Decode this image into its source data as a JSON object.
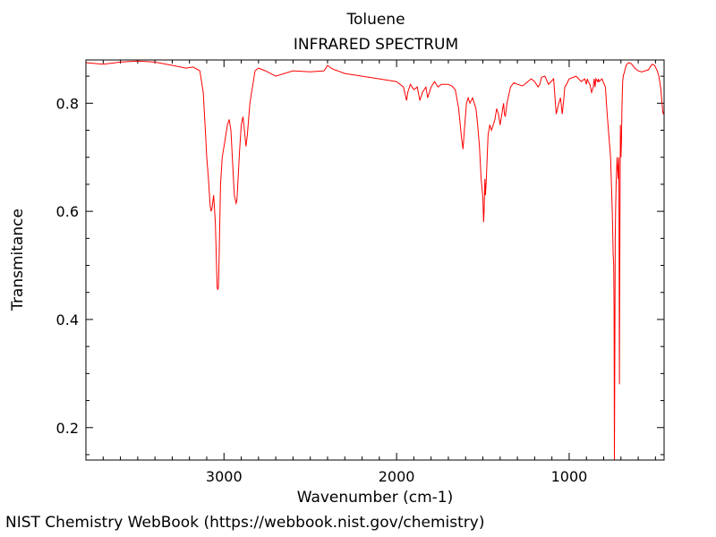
{
  "footer": "NIST Chemistry WebBook (https://webbook.nist.gov/chemistry)",
  "chart_data": {
    "type": "line",
    "title": "Toluene",
    "subtitle": "INFRARED SPECTRUM",
    "xlabel": "Wavenumber (cm-1)",
    "ylabel": "Transmitance",
    "xlim": [
      3800,
      450
    ],
    "ylim": [
      0.14,
      0.88
    ],
    "x_reversed": true,
    "xticks": [
      3000,
      2000,
      1000
    ],
    "xtick_labels": [
      "3000",
      "2000",
      "1000"
    ],
    "yticks": [
      0.2,
      0.4,
      0.6,
      0.8
    ],
    "ytick_labels": [
      "0.2",
      "0.4",
      "0.6",
      "0.8"
    ],
    "grid": false,
    "series": [
      {
        "color": "#ff0000",
        "x": [
          3800,
          3700,
          3600,
          3500,
          3400,
          3300,
          3220,
          3180,
          3140,
          3120,
          3110,
          3100,
          3090,
          3080,
          3075,
          3070,
          3060,
          3050,
          3045,
          3040,
          3036,
          3032,
          3028,
          3020,
          3010,
          3000,
          2990,
          2980,
          2970,
          2960,
          2950,
          2940,
          2930,
          2925,
          2920,
          2910,
          2900,
          2890,
          2880,
          2873,
          2865,
          2850,
          2820,
          2800,
          2760,
          2700,
          2600,
          2500,
          2420,
          2400,
          2380,
          2360,
          2300,
          2200,
          2100,
          2000,
          1960,
          1942,
          1935,
          1920,
          1900,
          1880,
          1865,
          1850,
          1830,
          1820,
          1800,
          1780,
          1760,
          1740,
          1700,
          1680,
          1660,
          1640,
          1625,
          1615,
          1605,
          1595,
          1585,
          1575,
          1560,
          1540,
          1530,
          1520,
          1510,
          1500,
          1496,
          1493,
          1490,
          1488,
          1485,
          1480,
          1470,
          1460,
          1450,
          1440,
          1430,
          1420,
          1410,
          1400,
          1390,
          1380,
          1375,
          1370,
          1360,
          1340,
          1320,
          1300,
          1270,
          1240,
          1220,
          1200,
          1180,
          1170,
          1160,
          1140,
          1120,
          1090,
          1082,
          1075,
          1060,
          1050,
          1040,
          1032,
          1025,
          1015,
          1000,
          960,
          930,
          910,
          900,
          895,
          890,
          880,
          870,
          860,
          855,
          850,
          845,
          835,
          830,
          828,
          810,
          790,
          780,
          760,
          750,
          745,
          742,
          740,
          738,
          735,
          733,
          731,
          728,
          722,
          716,
          712,
          709,
          706,
          703,
          700,
          697,
          694,
          690,
          686,
          682,
          678,
          674,
          670,
          665,
          655,
          640,
          620,
          600,
          580,
          560,
          540,
          520,
          505,
          490,
          480,
          470,
          462,
          458,
          455,
          450
        ],
        "y": [
          0.875,
          0.872,
          0.876,
          0.878,
          0.876,
          0.87,
          0.865,
          0.867,
          0.86,
          0.82,
          0.76,
          0.7,
          0.66,
          0.61,
          0.6,
          0.605,
          0.63,
          0.58,
          0.52,
          0.46,
          0.455,
          0.46,
          0.52,
          0.65,
          0.7,
          0.72,
          0.74,
          0.76,
          0.77,
          0.75,
          0.69,
          0.63,
          0.615,
          0.62,
          0.65,
          0.71,
          0.76,
          0.775,
          0.745,
          0.72,
          0.74,
          0.8,
          0.86,
          0.865,
          0.86,
          0.85,
          0.86,
          0.858,
          0.86,
          0.87,
          0.865,
          0.862,
          0.855,
          0.85,
          0.845,
          0.84,
          0.83,
          0.805,
          0.82,
          0.835,
          0.825,
          0.83,
          0.805,
          0.82,
          0.83,
          0.81,
          0.83,
          0.84,
          0.83,
          0.835,
          0.835,
          0.832,
          0.825,
          0.79,
          0.74,
          0.715,
          0.76,
          0.8,
          0.81,
          0.8,
          0.81,
          0.79,
          0.76,
          0.72,
          0.66,
          0.625,
          0.58,
          0.6,
          0.64,
          0.66,
          0.63,
          0.66,
          0.74,
          0.76,
          0.75,
          0.76,
          0.77,
          0.79,
          0.78,
          0.76,
          0.78,
          0.8,
          0.78,
          0.775,
          0.8,
          0.83,
          0.838,
          0.835,
          0.832,
          0.84,
          0.845,
          0.84,
          0.83,
          0.835,
          0.848,
          0.85,
          0.835,
          0.845,
          0.81,
          0.78,
          0.8,
          0.81,
          0.78,
          0.805,
          0.83,
          0.835,
          0.845,
          0.85,
          0.84,
          0.845,
          0.835,
          0.845,
          0.84,
          0.835,
          0.82,
          0.83,
          0.845,
          0.83,
          0.845,
          0.84,
          0.845,
          0.84,
          0.845,
          0.83,
          0.78,
          0.7,
          0.6,
          0.52,
          0.5,
          0.42,
          0.14,
          0.35,
          0.55,
          0.6,
          0.65,
          0.7,
          0.66,
          0.7,
          0.28,
          0.55,
          0.76,
          0.7,
          0.73,
          0.79,
          0.84,
          0.852,
          0.855,
          0.86,
          0.865,
          0.87,
          0.872,
          0.875,
          0.873,
          0.865,
          0.86,
          0.858,
          0.86,
          0.862,
          0.872,
          0.87,
          0.86,
          0.85,
          0.83,
          0.8,
          0.785,
          0.78,
          0.785
        ]
      }
    ]
  }
}
